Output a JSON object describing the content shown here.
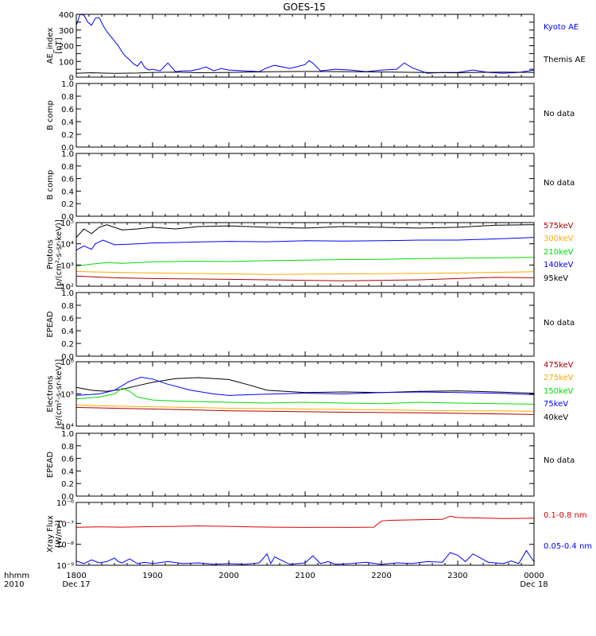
{
  "title": "GOES-15",
  "footer": {
    "hhmm_label": "hhmm",
    "year_label": "2010"
  },
  "xaxis": {
    "ticks": [
      {
        "hour": 18,
        "label": "1800",
        "sub": "Dec 17"
      },
      {
        "hour": 19,
        "label": "1900",
        "sub": ""
      },
      {
        "hour": 20,
        "label": "2000",
        "sub": ""
      },
      {
        "hour": 21,
        "label": "2100",
        "sub": ""
      },
      {
        "hour": 22,
        "label": "2200",
        "sub": ""
      },
      {
        "hour": 23,
        "label": "2300",
        "sub": ""
      },
      {
        "hour": 24,
        "label": "0000",
        "sub": "Dec 18"
      }
    ],
    "range": [
      18,
      24
    ]
  },
  "colors": {
    "black": "#000000",
    "blue": "#0000ff",
    "green": "#00dd00",
    "orange": "#ffaa00",
    "darkred": "#aa0000",
    "red": "#dd0000"
  },
  "chart_data": [
    {
      "type": "line",
      "id": "ae",
      "ylabel": [
        "AE_index",
        "[nT]"
      ],
      "yscale": "linear",
      "ylim": [
        0,
        400
      ],
      "yticks": [
        0,
        50,
        100,
        150,
        200,
        250,
        300,
        350,
        400
      ],
      "ytick_labels": [
        "0",
        "",
        "100",
        "",
        "200",
        "",
        "300",
        "",
        "400"
      ],
      "series": [
        {
          "name": "Kyoto AE",
          "color": "#0000ff",
          "x": [
            18.0,
            18.05,
            18.1,
            18.15,
            18.2,
            18.25,
            18.3,
            18.35,
            18.4,
            18.45,
            18.5,
            18.55,
            18.6,
            18.65,
            18.7,
            18.75,
            18.8,
            18.85,
            18.9,
            18.95,
            19.0,
            19.1,
            19.2,
            19.3,
            19.4,
            19.5,
            19.6,
            19.7,
            19.8,
            19.9,
            20.0,
            20.2,
            20.4,
            20.5,
            20.6,
            20.8,
            21.0,
            21.05,
            21.1,
            21.2,
            21.4,
            21.6,
            21.8,
            22.0,
            22.2,
            22.3,
            22.4,
            22.6,
            22.8,
            23.0,
            23.2,
            23.4,
            23.6,
            23.8,
            24.0
          ],
          "values": [
            330,
            400,
            395,
            350,
            330,
            375,
            380,
            330,
            290,
            260,
            230,
            200,
            160,
            130,
            110,
            85,
            70,
            100,
            60,
            45,
            50,
            40,
            90,
            35,
            40,
            40,
            50,
            65,
            40,
            55,
            45,
            40,
            35,
            60,
            75,
            55,
            80,
            105,
            90,
            40,
            50,
            45,
            35,
            45,
            50,
            90,
            60,
            25,
            30,
            30,
            45,
            30,
            25,
            30,
            45
          ]
        },
        {
          "name": "Themis AE",
          "color": "#000000",
          "x": [
            18.0,
            18.2,
            18.5,
            18.8,
            19.0,
            19.3,
            19.6,
            20.0,
            20.5,
            21.0,
            21.5,
            22.0,
            22.5,
            23.0,
            23.5,
            24.0
          ],
          "values": [
            25,
            28,
            24,
            26,
            30,
            32,
            28,
            30,
            34,
            36,
            35,
            33,
            30,
            28,
            32,
            30
          ]
        }
      ],
      "right_labels": [
        {
          "text": "Kyoto AE",
          "color": "#0000ff"
        },
        {
          "text": "Themis AE",
          "color": "#000000"
        }
      ]
    },
    {
      "type": "line",
      "id": "bcomp1",
      "ylabel": [
        "B comp"
      ],
      "yscale": "linear",
      "ylim": [
        0,
        1
      ],
      "yticks": [
        0,
        0.2,
        0.4,
        0.6,
        0.8,
        1.0
      ],
      "ytick_labels": [
        "0.0",
        "0.2",
        "0.4",
        "0.6",
        "0.8",
        "1.0"
      ],
      "series": [],
      "right_labels": [
        {
          "text": "No data",
          "color": "#000000"
        }
      ]
    },
    {
      "type": "line",
      "id": "bcomp2",
      "ylabel": [
        "B comp"
      ],
      "yscale": "linear",
      "ylim": [
        0,
        1
      ],
      "yticks": [
        0,
        0.2,
        0.4,
        0.6,
        0.8,
        1.0
      ],
      "ytick_labels": [
        "0.0",
        "0.2",
        "0.4",
        "0.6",
        "0.8",
        "1.0"
      ],
      "series": [],
      "right_labels": [
        {
          "text": "No data",
          "color": "#000000"
        }
      ]
    },
    {
      "type": "line",
      "id": "protons",
      "ylabel": [
        "Protons",
        "[p/(cm²-s-sr-keV)]"
      ],
      "yscale": "log",
      "ylim": [
        100,
        100000
      ],
      "yticks": [
        100,
        1000,
        10000,
        100000
      ],
      "ytick_labels": [
        "10²",
        "10³",
        "10⁴",
        "10⁵"
      ],
      "series": [
        {
          "name": "95keV",
          "color": "#000000",
          "x": [
            18.0,
            18.1,
            18.2,
            18.3,
            18.4,
            18.6,
            18.8,
            19.0,
            19.3,
            19.6,
            20.0,
            20.5,
            21.0,
            21.5,
            22.0,
            22.5,
            23.0,
            23.5,
            24.0
          ],
          "values": [
            20000,
            50000,
            30000,
            60000,
            80000,
            45000,
            50000,
            60000,
            50000,
            65000,
            70000,
            60000,
            55000,
            65000,
            60000,
            55000,
            60000,
            75000,
            80000
          ]
        },
        {
          "name": "140keV",
          "color": "#0000ff",
          "x": [
            18.0,
            18.1,
            18.2,
            18.25,
            18.35,
            18.5,
            18.8,
            19.0,
            19.5,
            20.0,
            20.5,
            21.0,
            21.5,
            22.0,
            22.5,
            23.0,
            23.5,
            24.0
          ],
          "values": [
            5000,
            8000,
            5500,
            10000,
            15000,
            9000,
            10000,
            11000,
            12000,
            13000,
            12500,
            14000,
            13500,
            14000,
            15000,
            15000,
            17000,
            20000
          ]
        },
        {
          "name": "210keV",
          "color": "#00dd00",
          "x": [
            18.0,
            18.2,
            18.4,
            18.6,
            19.0,
            19.5,
            20.0,
            20.5,
            21.0,
            21.5,
            22.0,
            22.5,
            23.0,
            23.5,
            24.0
          ],
          "values": [
            900,
            1100,
            1300,
            1200,
            1400,
            1500,
            1450,
            1600,
            1700,
            1800,
            1850,
            2000,
            2100,
            2200,
            2300
          ]
        },
        {
          "name": "300keV",
          "color": "#ffaa00",
          "x": [
            18.0,
            18.5,
            19.0,
            19.5,
            20.0,
            20.5,
            21.0,
            21.5,
            22.0,
            22.5,
            23.0,
            23.5,
            24.0
          ],
          "values": [
            500,
            450,
            420,
            400,
            380,
            360,
            370,
            380,
            390,
            400,
            420,
            450,
            480
          ]
        },
        {
          "name": "575keV",
          "color": "#aa0000",
          "x": [
            18.0,
            18.5,
            19.0,
            19.5,
            20.0,
            20.5,
            21.0,
            21.5,
            22.0,
            22.5,
            23.0,
            23.5,
            24.0
          ],
          "values": [
            300,
            250,
            230,
            220,
            210,
            200,
            190,
            180,
            190,
            200,
            230,
            260,
            250
          ]
        }
      ],
      "right_labels": [
        {
          "text": "575keV",
          "color": "#aa0000"
        },
        {
          "text": "300keV",
          "color": "#ffaa00"
        },
        {
          "text": "210keV",
          "color": "#00dd00"
        },
        {
          "text": "140keV",
          "color": "#0000ff"
        },
        {
          "text": "95keV",
          "color": "#000000"
        }
      ]
    },
    {
      "type": "line",
      "id": "epead1",
      "ylabel": [
        "EPEAD"
      ],
      "yscale": "linear",
      "ylim": [
        0,
        1
      ],
      "yticks": [
        0,
        0.2,
        0.4,
        0.6,
        0.8,
        1.0
      ],
      "ytick_labels": [
        "0.0",
        "0.2",
        "0.4",
        "0.6",
        "0.8",
        "1.0"
      ],
      "series": [],
      "right_labels": [
        {
          "text": "No data",
          "color": "#000000"
        }
      ]
    },
    {
      "type": "line",
      "id": "electrons",
      "ylabel": [
        "Electrons",
        "[e/(cm²-s-sr-keV)]"
      ],
      "yscale": "log",
      "ylim": [
        10000,
        1000000
      ],
      "yticks": [
        10000,
        100000,
        1000000
      ],
      "ytick_labels": [
        "10⁴",
        "10⁵",
        "10⁶"
      ],
      "series": [
        {
          "name": "40keV",
          "color": "#000000",
          "x": [
            18.0,
            18.2,
            18.4,
            18.6,
            18.8,
            19.0,
            19.3,
            19.6,
            20.0,
            20.3,
            20.5,
            21.0,
            21.5,
            22.0,
            22.5,
            23.0,
            23.5,
            24.0
          ],
          "values": [
            160000,
            130000,
            120000,
            140000,
            180000,
            230000,
            300000,
            320000,
            280000,
            180000,
            130000,
            110000,
            115000,
            110000,
            120000,
            125000,
            115000,
            105000
          ]
        },
        {
          "name": "75keV",
          "color": "#0000ff",
          "x": [
            18.0,
            18.3,
            18.5,
            18.7,
            18.85,
            19.0,
            19.2,
            19.5,
            19.8,
            20.0,
            20.3,
            20.6,
            21.0,
            21.5,
            22.0,
            22.5,
            23.0,
            23.5,
            24.0
          ],
          "values": [
            90000,
            100000,
            130000,
            250000,
            330000,
            290000,
            200000,
            130000,
            100000,
            90000,
            95000,
            100000,
            105000,
            100000,
            110000,
            115000,
            110000,
            105000,
            95000
          ]
        },
        {
          "name": "150keV",
          "color": "#00dd00",
          "x": [
            18.0,
            18.3,
            18.5,
            18.6,
            18.7,
            18.8,
            19.0,
            19.3,
            19.6,
            20.0,
            20.5,
            21.0,
            21.5,
            22.0,
            22.5,
            23.0,
            23.5,
            24.0
          ],
          "values": [
            70000,
            80000,
            100000,
            150000,
            120000,
            80000,
            65000,
            60000,
            58000,
            55000,
            52000,
            55000,
            52000,
            50000,
            55000,
            52000,
            50000,
            48000
          ]
        },
        {
          "name": "275keV",
          "color": "#ffaa00",
          "x": [
            18.0,
            18.5,
            19.0,
            19.5,
            20.0,
            20.5,
            21.0,
            21.5,
            22.0,
            22.5,
            23.0,
            23.5,
            24.0
          ],
          "values": [
            45000,
            42000,
            40000,
            38000,
            36000,
            35000,
            34000,
            33000,
            32000,
            31000,
            30000,
            30000,
            29000
          ]
        },
        {
          "name": "475keV",
          "color": "#aa0000",
          "x": [
            18.0,
            18.5,
            19.0,
            19.5,
            20.0,
            20.5,
            21.0,
            21.5,
            22.0,
            22.5,
            23.0,
            23.5,
            24.0
          ],
          "values": [
            38000,
            36000,
            34000,
            32000,
            30000,
            29000,
            28000,
            27000,
            26500,
            26000,
            25000,
            24000,
            23000
          ]
        }
      ],
      "right_labels": [
        {
          "text": "475keV",
          "color": "#aa0000"
        },
        {
          "text": "275keV",
          "color": "#ffaa00"
        },
        {
          "text": "150keV",
          "color": "#00dd00"
        },
        {
          "text": "75keV",
          "color": "#0000ff"
        },
        {
          "text": "40keV",
          "color": "#000000"
        }
      ]
    },
    {
      "type": "line",
      "id": "epead2",
      "ylabel": [
        "EPEAD"
      ],
      "yscale": "linear",
      "ylim": [
        0,
        1
      ],
      "yticks": [
        0,
        0.2,
        0.4,
        0.6,
        0.8,
        1.0
      ],
      "ytick_labels": [
        "0.0",
        "0.2",
        "0.4",
        "0.6",
        "0.8",
        "1.0"
      ],
      "series": [],
      "right_labels": [
        {
          "text": "No data",
          "color": "#000000"
        }
      ]
    },
    {
      "type": "line",
      "id": "xray",
      "ylabel": [
        "Xray Flux",
        "[W/m²]"
      ],
      "yscale": "log",
      "ylim": [
        1e-09,
        1e-06
      ],
      "yticks": [
        1e-09,
        1e-08,
        1e-07,
        1e-06
      ],
      "ytick_labels": [
        "10⁻⁹",
        "10⁻⁸",
        "10⁻⁷",
        "10⁻⁶"
      ],
      "series": [
        {
          "name": "0.1-0.8 nm",
          "color": "#dd0000",
          "x": [
            18.0,
            18.3,
            18.6,
            19.0,
            19.3,
            19.6,
            20.0,
            20.3,
            20.6,
            21.0,
            21.3,
            21.6,
            21.9,
            22.0,
            22.1,
            22.5,
            22.8,
            22.9,
            23.0,
            23.3,
            23.6,
            24.0
          ],
          "values": [
            6.5e-08,
            6.8e-08,
            6.6e-08,
            7e-08,
            7.2e-08,
            7.6e-08,
            7.2e-08,
            6.8e-08,
            6.6e-08,
            6.4e-08,
            6.5e-08,
            6.4e-08,
            6.6e-08,
            1.3e-07,
            1.4e-07,
            1.5e-07,
            1.55e-07,
            2.2e-07,
            1.9e-07,
            1.8e-07,
            1.7e-07,
            1.75e-07
          ]
        },
        {
          "name": "0.05-0.4 nm",
          "color": "#0000ff",
          "x": [
            18.0,
            18.1,
            18.2,
            18.3,
            18.4,
            18.5,
            18.55,
            18.6,
            18.7,
            18.8,
            18.9,
            19.0,
            19.2,
            19.4,
            19.6,
            19.8,
            20.0,
            20.2,
            20.4,
            20.5,
            20.55,
            20.6,
            20.8,
            21.0,
            21.1,
            21.2,
            21.3,
            21.4,
            21.6,
            21.8,
            22.0,
            22.2,
            22.4,
            22.6,
            22.8,
            22.9,
            23.0,
            23.1,
            23.2,
            23.4,
            23.6,
            23.7,
            23.8,
            23.9,
            24.0
          ],
          "values": [
            1.6e-09,
            1.2e-09,
            1.8e-09,
            1.3e-09,
            1.5e-09,
            2.2e-09,
            1.5e-09,
            1.3e-09,
            2e-09,
            1.2e-09,
            1.4e-09,
            1.2e-09,
            1.5e-09,
            1.2e-09,
            1.3e-09,
            1.1e-09,
            1.2e-09,
            1.1e-09,
            1.3e-09,
            3.5e-09,
            1.2e-09,
            2.5e-09,
            1.1e-09,
            1.3e-09,
            2.8e-09,
            1.2e-09,
            1.5e-09,
            1.1e-09,
            1.2e-09,
            1.4e-09,
            1.1e-09,
            1.3e-09,
            1.2e-09,
            1.5e-09,
            1.4e-09,
            4e-09,
            3e-09,
            1.5e-09,
            3.5e-09,
            1.4e-09,
            1.2e-09,
            1.6e-09,
            1.2e-09,
            5e-09,
            1.5e-09
          ]
        }
      ],
      "right_labels": [
        {
          "text": "0.1-0.8 nm",
          "color": "#dd0000"
        },
        {
          "text": "0.05-0.4 nm",
          "color": "#0000ff"
        }
      ]
    }
  ]
}
